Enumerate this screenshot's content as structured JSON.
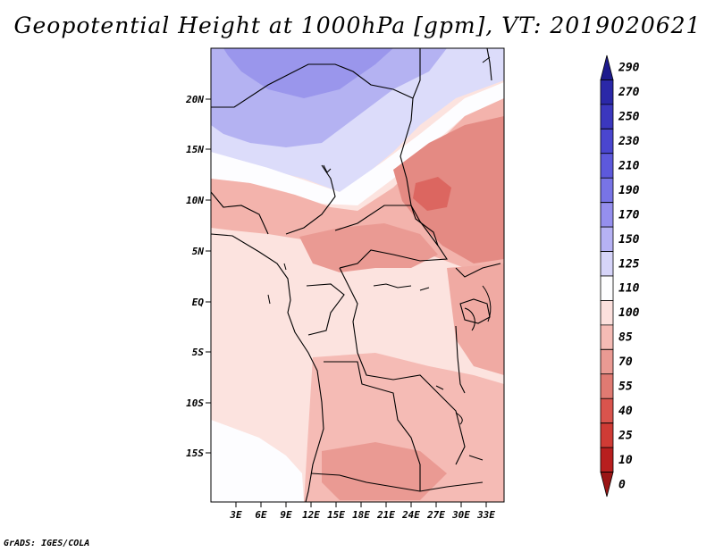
{
  "title": "Geopotential Height at 1000hPa [gpm], VT: 2019020621",
  "credit": "GrADS: IGES/COLA",
  "map": {
    "lat_labels": [
      "20N",
      "15N",
      "10N",
      "5N",
      "EQ",
      "5S",
      "10S",
      "15S"
    ],
    "lon_labels": [
      "3E",
      "6E",
      "9E",
      "12E",
      "15E",
      "18E",
      "21E",
      "24E",
      "27E",
      "30E",
      "33E"
    ]
  },
  "colorbar": {
    "levels": [
      "290",
      "270",
      "250",
      "230",
      "210",
      "190",
      "170",
      "150",
      "125",
      "110",
      "100",
      "85",
      "70",
      "55",
      "40",
      "25",
      "10",
      "0"
    ],
    "colors": [
      "#1d1a8c",
      "#2b28a8",
      "#3b37be",
      "#4a46cf",
      "#5d59dc",
      "#7874e6",
      "#958fee",
      "#b6b2f4",
      "#d6d4f9",
      "#fdfdff",
      "#fce0dd",
      "#f5bbb5",
      "#ea9a93",
      "#e07a72",
      "#d9544d",
      "#cf3b35",
      "#b81f1f",
      "#9a1515"
    ]
  }
}
